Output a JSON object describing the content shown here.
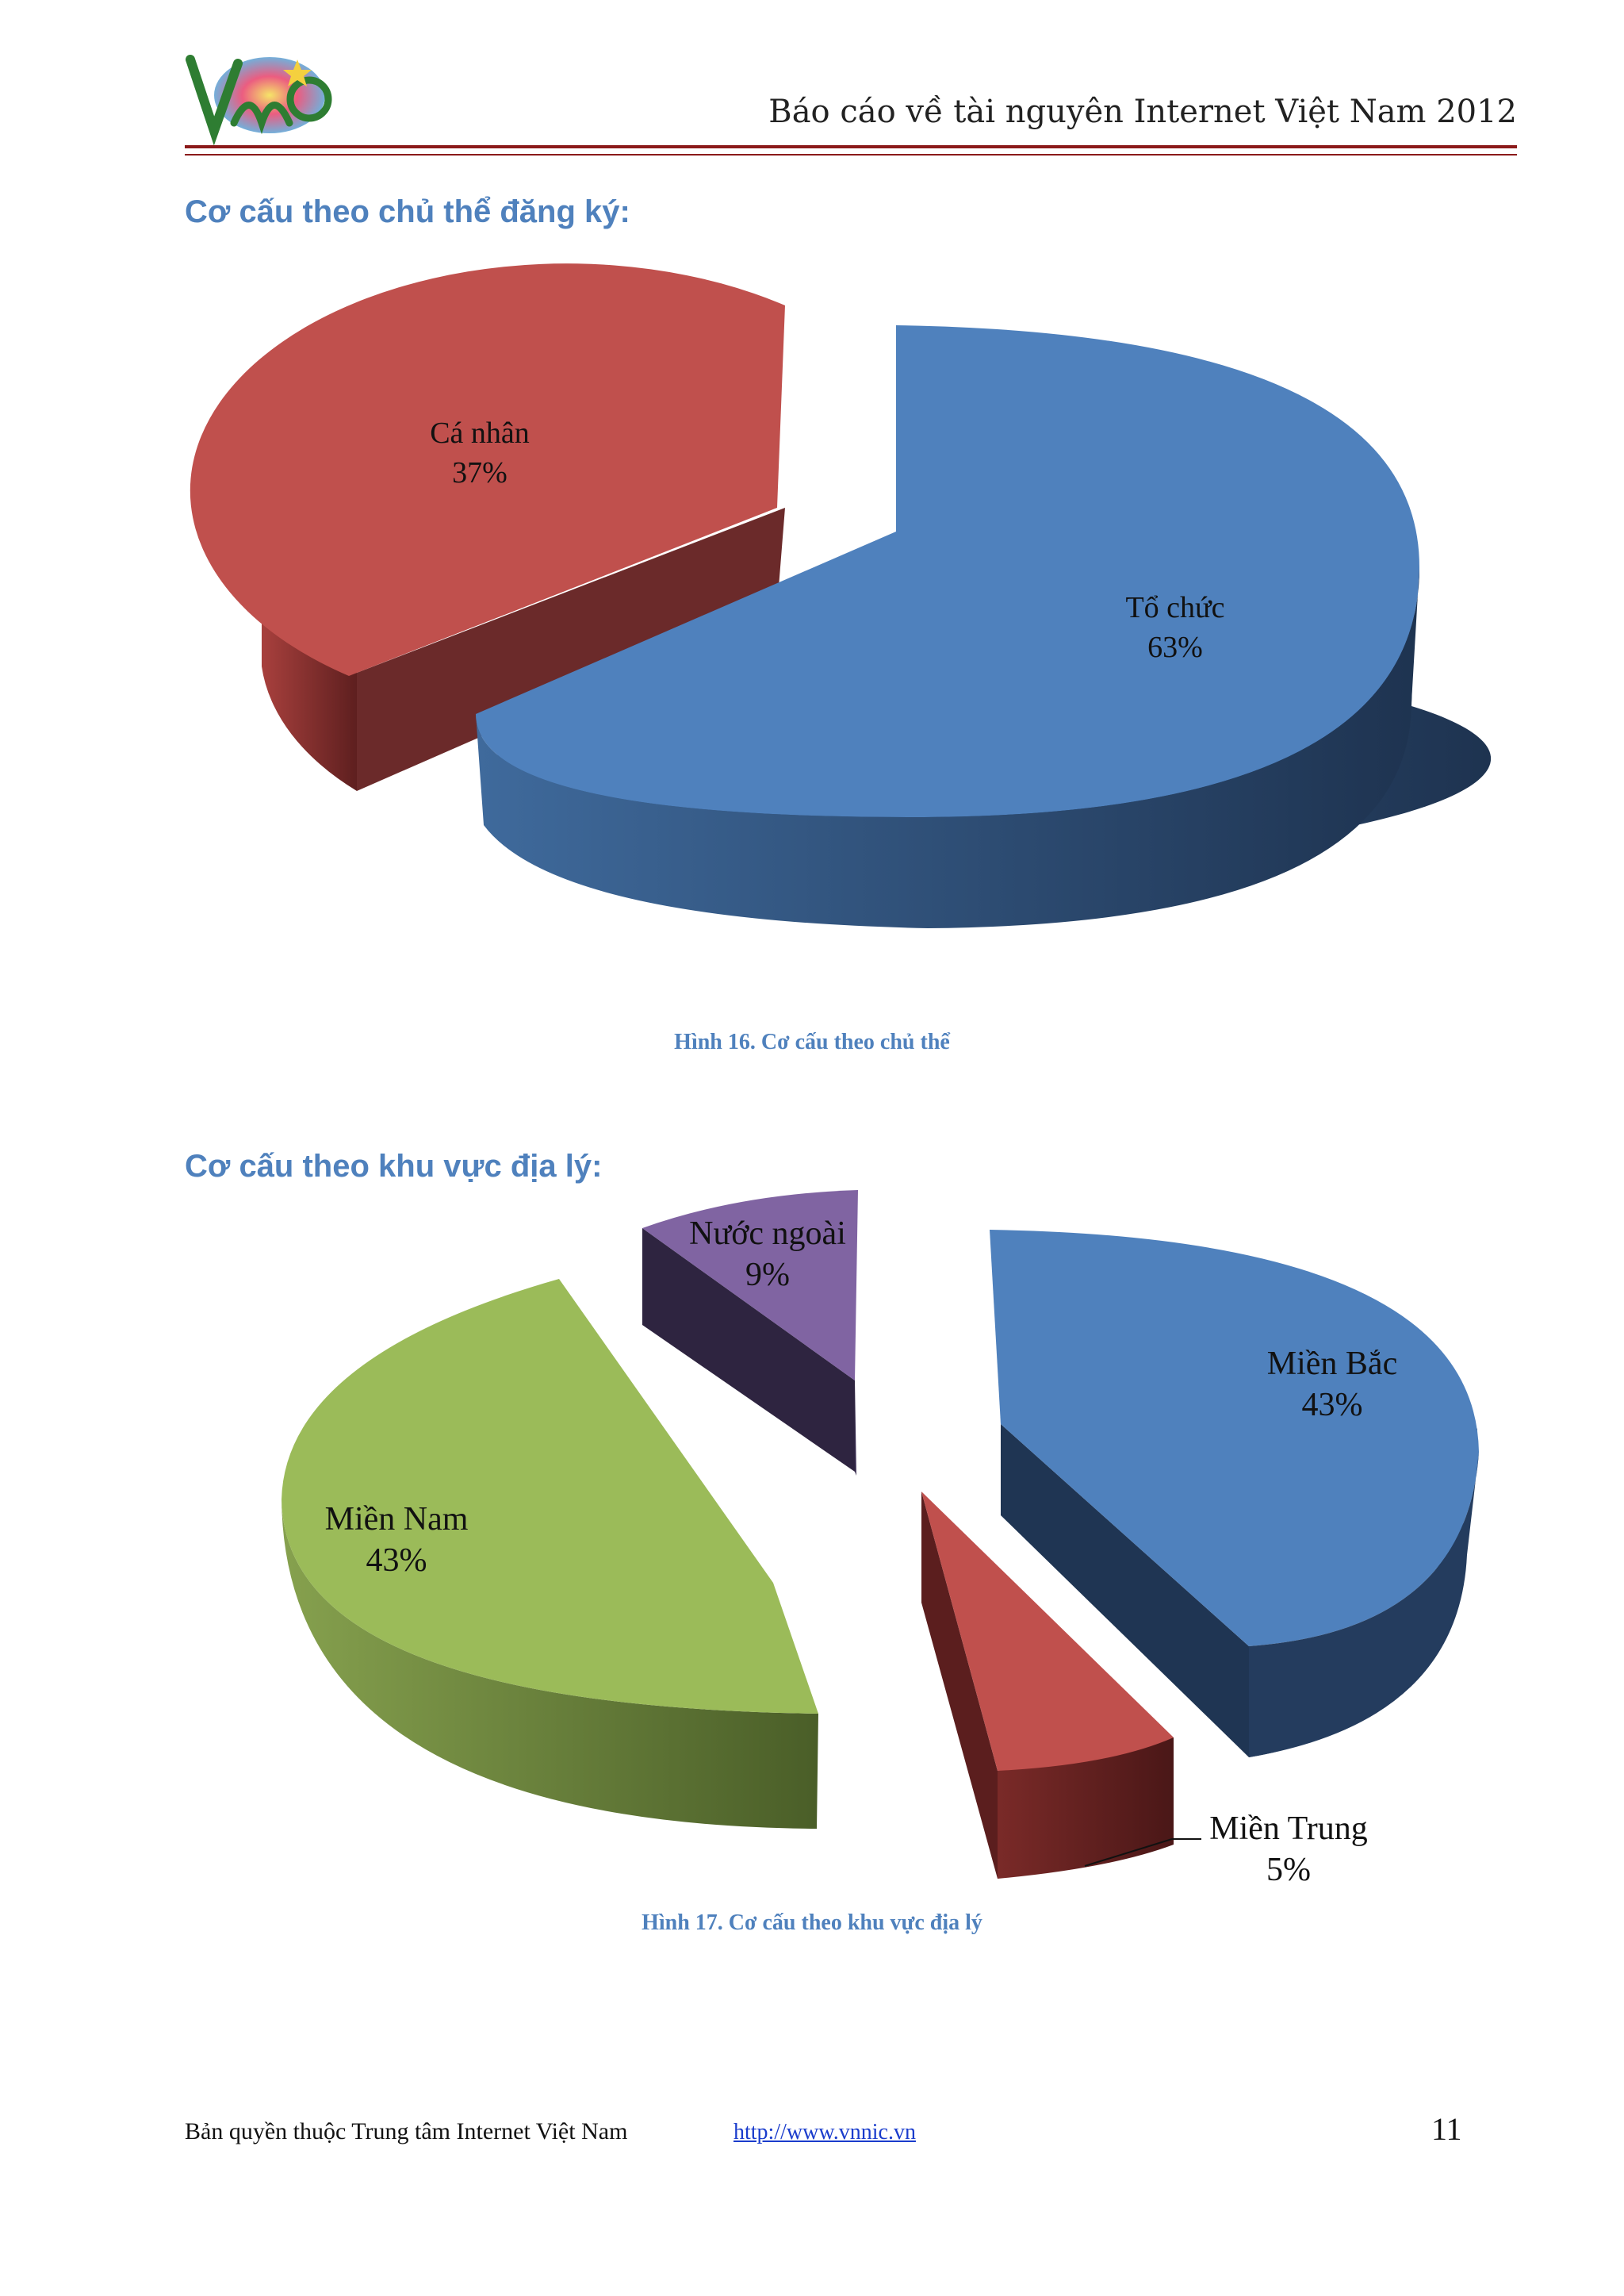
{
  "header": {
    "title": "Báo cáo về tài nguyên Internet Việt Nam 2012",
    "logo_text": "VNNIC"
  },
  "section1": {
    "title": "Cơ cấu theo chủ thể đăng ký:"
  },
  "figure1": {
    "caption": "Hình 16. Cơ cấu theo chủ thể"
  },
  "section2": {
    "title": "Cơ cấu theo khu vực địa lý:"
  },
  "figure2": {
    "caption": "Hình 17. Cơ cấu theo khu vực địa lý"
  },
  "chart_data": [
    {
      "type": "pie",
      "style": "3d-exploded",
      "title": "",
      "slices": [
        {
          "label": "Tổ chức",
          "percent_label": "63%",
          "value": 63,
          "color": "#4f81bd"
        },
        {
          "label": "Cá nhân",
          "percent_label": "37%",
          "value": 37,
          "color": "#c0504d"
        }
      ]
    },
    {
      "type": "pie",
      "style": "3d-exploded",
      "title": "",
      "slices": [
        {
          "label": "Miền Bắc",
          "percent_label": "43%",
          "value": 43,
          "color": "#4f81bd"
        },
        {
          "label": "Miền Trung",
          "percent_label": "5%",
          "value": 5,
          "color": "#c0504d"
        },
        {
          "label": "Miền Nam",
          "percent_label": "43%",
          "value": 43,
          "color": "#9bbb59"
        },
        {
          "label": "Nước ngoài",
          "percent_label": "9%",
          "value": 9,
          "color": "#8064a2"
        }
      ]
    }
  ],
  "footer": {
    "copyright": "Bản quyền thuộc Trung tâm Internet Việt Nam",
    "link": "http://www.vnnic.vn",
    "page": "11"
  }
}
